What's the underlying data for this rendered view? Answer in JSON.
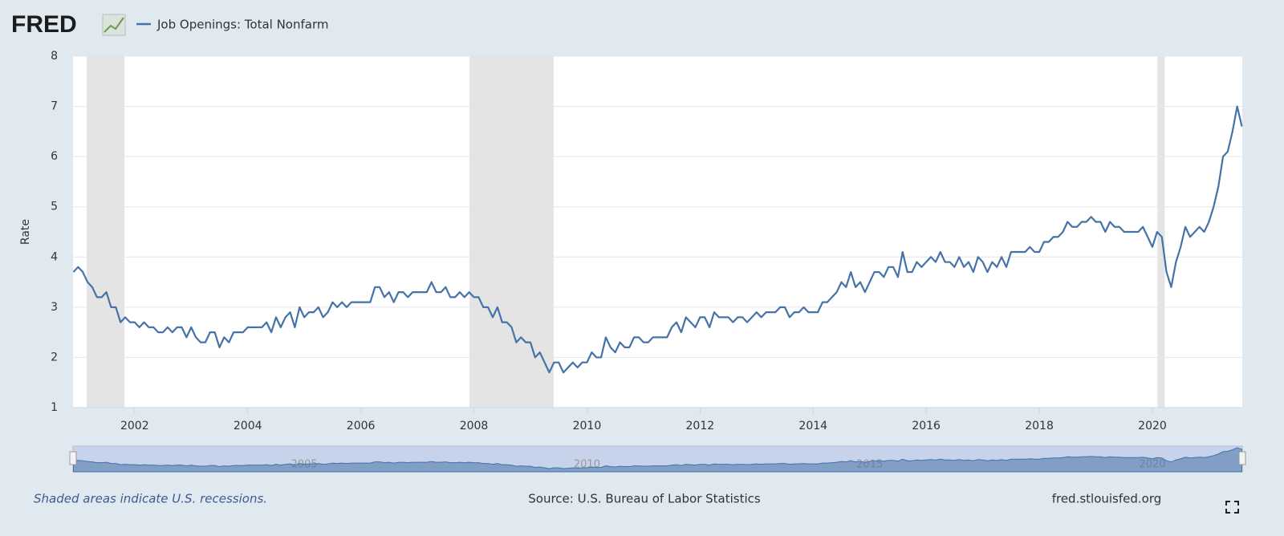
{
  "chart_data": {
    "type": "line",
    "logo": "FRED",
    "series": [
      {
        "name": "Job Openings: Total Nonfarm",
        "color": "#4572a7",
        "values": [
          3.7,
          3.8,
          3.7,
          3.5,
          3.4,
          3.2,
          3.2,
          3.3,
          3.0,
          3.0,
          2.7,
          2.8,
          2.7,
          2.7,
          2.6,
          2.7,
          2.6,
          2.6,
          2.5,
          2.5,
          2.6,
          2.5,
          2.6,
          2.6,
          2.4,
          2.6,
          2.4,
          2.3,
          2.3,
          2.5,
          2.5,
          2.2,
          2.4,
          2.3,
          2.5,
          2.5,
          2.5,
          2.6,
          2.6,
          2.6,
          2.6,
          2.7,
          2.5,
          2.8,
          2.6,
          2.8,
          2.9,
          2.6,
          3.0,
          2.8,
          2.9,
          2.9,
          3.0,
          2.8,
          2.9,
          3.1,
          3.0,
          3.1,
          3.0,
          3.1,
          3.1,
          3.1,
          3.1,
          3.1,
          3.4,
          3.4,
          3.2,
          3.3,
          3.1,
          3.3,
          3.3,
          3.2,
          3.3,
          3.3,
          3.3,
          3.3,
          3.5,
          3.3,
          3.3,
          3.4,
          3.2,
          3.2,
          3.3,
          3.2,
          3.3,
          3.2,
          3.2,
          3.0,
          3.0,
          2.8,
          3.0,
          2.7,
          2.7,
          2.6,
          2.3,
          2.4,
          2.3,
          2.3,
          2.0,
          2.1,
          1.9,
          1.7,
          1.9,
          1.9,
          1.7,
          1.8,
          1.9,
          1.8,
          1.9,
          1.9,
          2.1,
          2.0,
          2.0,
          2.4,
          2.2,
          2.1,
          2.3,
          2.2,
          2.2,
          2.4,
          2.4,
          2.3,
          2.3,
          2.4,
          2.4,
          2.4,
          2.4,
          2.6,
          2.7,
          2.5,
          2.8,
          2.7,
          2.6,
          2.8,
          2.8,
          2.6,
          2.9,
          2.8,
          2.8,
          2.8,
          2.7,
          2.8,
          2.8,
          2.7,
          2.8,
          2.9,
          2.8,
          2.9,
          2.9,
          2.9,
          3.0,
          3.0,
          2.8,
          2.9,
          2.9,
          3.0,
          2.9,
          2.9,
          2.9,
          3.1,
          3.1,
          3.2,
          3.3,
          3.5,
          3.4,
          3.7,
          3.4,
          3.5,
          3.3,
          3.5,
          3.7,
          3.7,
          3.6,
          3.8,
          3.8,
          3.6,
          4.1,
          3.7,
          3.7,
          3.9,
          3.8,
          3.9,
          4.0,
          3.9,
          4.1,
          3.9,
          3.9,
          3.8,
          4.0,
          3.8,
          3.9,
          3.7,
          4.0,
          3.9,
          3.7,
          3.9,
          3.8,
          4.0,
          3.8,
          4.1,
          4.1,
          4.1,
          4.1,
          4.2,
          4.1,
          4.1,
          4.3,
          4.3,
          4.4,
          4.4,
          4.5,
          4.7,
          4.6,
          4.6,
          4.7,
          4.7,
          4.8,
          4.7,
          4.7,
          4.5,
          4.7,
          4.6,
          4.6,
          4.5,
          4.5,
          4.5,
          4.5,
          4.6,
          4.4,
          4.2,
          4.5,
          4.4,
          3.7,
          3.4,
          3.9,
          4.2,
          4.6,
          4.4,
          4.5,
          4.6,
          4.5,
          4.7,
          5.0,
          5.4,
          6.0,
          6.1,
          6.5,
          7.0,
          6.6
        ]
      }
    ],
    "x": [
      2000.917,
      2001.0,
      2001.083,
      2001.167,
      2001.25,
      2001.333,
      2001.417,
      2001.5,
      2001.583,
      2001.667,
      2001.75,
      2001.833,
      2001.917,
      2002.0,
      2002.083,
      2002.167,
      2002.25,
      2002.333,
      2002.417,
      2002.5,
      2002.583,
      2002.667,
      2002.75,
      2002.833,
      2002.917,
      2003.0,
      2003.083,
      2003.167,
      2003.25,
      2003.333,
      2003.417,
      2003.5,
      2003.583,
      2003.667,
      2003.75,
      2003.833,
      2003.917,
      2004.0,
      2004.083,
      2004.167,
      2004.25,
      2004.333,
      2004.417,
      2004.5,
      2004.583,
      2004.667,
      2004.75,
      2004.833,
      2004.917,
      2005.0,
      2005.083,
      2005.167,
      2005.25,
      2005.333,
      2005.417,
      2005.5,
      2005.583,
      2005.667,
      2005.75,
      2005.833,
      2005.917,
      2006.0,
      2006.083,
      2006.167,
      2006.25,
      2006.333,
      2006.417,
      2006.5,
      2006.583,
      2006.667,
      2006.75,
      2006.833,
      2006.917,
      2007.0,
      2007.083,
      2007.167,
      2007.25,
      2007.333,
      2007.417,
      2007.5,
      2007.583,
      2007.667,
      2007.75,
      2007.833,
      2007.917,
      2008.0,
      2008.083,
      2008.167,
      2008.25,
      2008.333,
      2008.417,
      2008.5,
      2008.583,
      2008.667,
      2008.75,
      2008.833,
      2008.917,
      2009.0,
      2009.083,
      2009.167,
      2009.25,
      2009.333,
      2009.417,
      2009.5,
      2009.583,
      2009.667,
      2009.75,
      2009.833,
      2009.917,
      2010.0,
      2010.083,
      2010.167,
      2010.25,
      2010.333,
      2010.417,
      2010.5,
      2010.583,
      2010.667,
      2010.75,
      2010.833,
      2010.917,
      2011.0,
      2011.083,
      2011.167,
      2011.25,
      2011.333,
      2011.417,
      2011.5,
      2011.583,
      2011.667,
      2011.75,
      2011.833,
      2011.917,
      2012.0,
      2012.083,
      2012.167,
      2012.25,
      2012.333,
      2012.417,
      2012.5,
      2012.583,
      2012.667,
      2012.75,
      2012.833,
      2012.917,
      2013.0,
      2013.083,
      2013.167,
      2013.25,
      2013.333,
      2013.417,
      2013.5,
      2013.583,
      2013.667,
      2013.75,
      2013.833,
      2013.917,
      2014.0,
      2014.083,
      2014.167,
      2014.25,
      2014.333,
      2014.417,
      2014.5,
      2014.583,
      2014.667,
      2014.75,
      2014.833,
      2014.917,
      2015.0,
      2015.083,
      2015.167,
      2015.25,
      2015.333,
      2015.417,
      2015.5,
      2015.583,
      2015.667,
      2015.75,
      2015.833,
      2015.917,
      2016.0,
      2016.083,
      2016.167,
      2016.25,
      2016.333,
      2016.417,
      2016.5,
      2016.583,
      2016.667,
      2016.75,
      2016.833,
      2016.917,
      2017.0,
      2017.083,
      2017.167,
      2017.25,
      2017.333,
      2017.417,
      2017.5,
      2017.583,
      2017.667,
      2017.75,
      2017.833,
      2017.917,
      2018.0,
      2018.083,
      2018.167,
      2018.25,
      2018.333,
      2018.417,
      2018.5,
      2018.583,
      2018.667,
      2018.75,
      2018.833,
      2018.917,
      2019.0,
      2019.083,
      2019.167,
      2019.25,
      2019.333,
      2019.417,
      2019.5,
      2019.583,
      2019.667,
      2019.75,
      2019.833,
      2019.917,
      2020.0,
      2020.083,
      2020.167,
      2020.25,
      2020.333,
      2020.417,
      2020.5,
      2020.583,
      2020.667,
      2020.75,
      2020.833,
      2020.917,
      2021.0,
      2021.083,
      2021.167,
      2021.25,
      2021.333,
      2021.417,
      2021.5,
      2021.583
    ],
    "xlim": [
      2000.91,
      2021.59
    ],
    "xticks": [
      2002,
      2004,
      2006,
      2008,
      2010,
      2012,
      2014,
      2016,
      2018,
      2020
    ],
    "ylim": [
      1,
      8
    ],
    "yticks": [
      1,
      2,
      3,
      4,
      5,
      6,
      7,
      8
    ],
    "ylabel": "Rate",
    "grid": true,
    "recessions": [
      [
        2001.15,
        2001.82
      ],
      [
        2007.92,
        2009.41
      ],
      [
        2020.09,
        2020.22
      ]
    ],
    "navigator_xticks": [
      2005,
      2010,
      2015,
      2020
    ],
    "recession_note": "Shaded areas indicate U.S. recessions.",
    "source": "Source: U.S. Bureau of Labor Statistics",
    "site": "fred.stlouisfed.org"
  }
}
